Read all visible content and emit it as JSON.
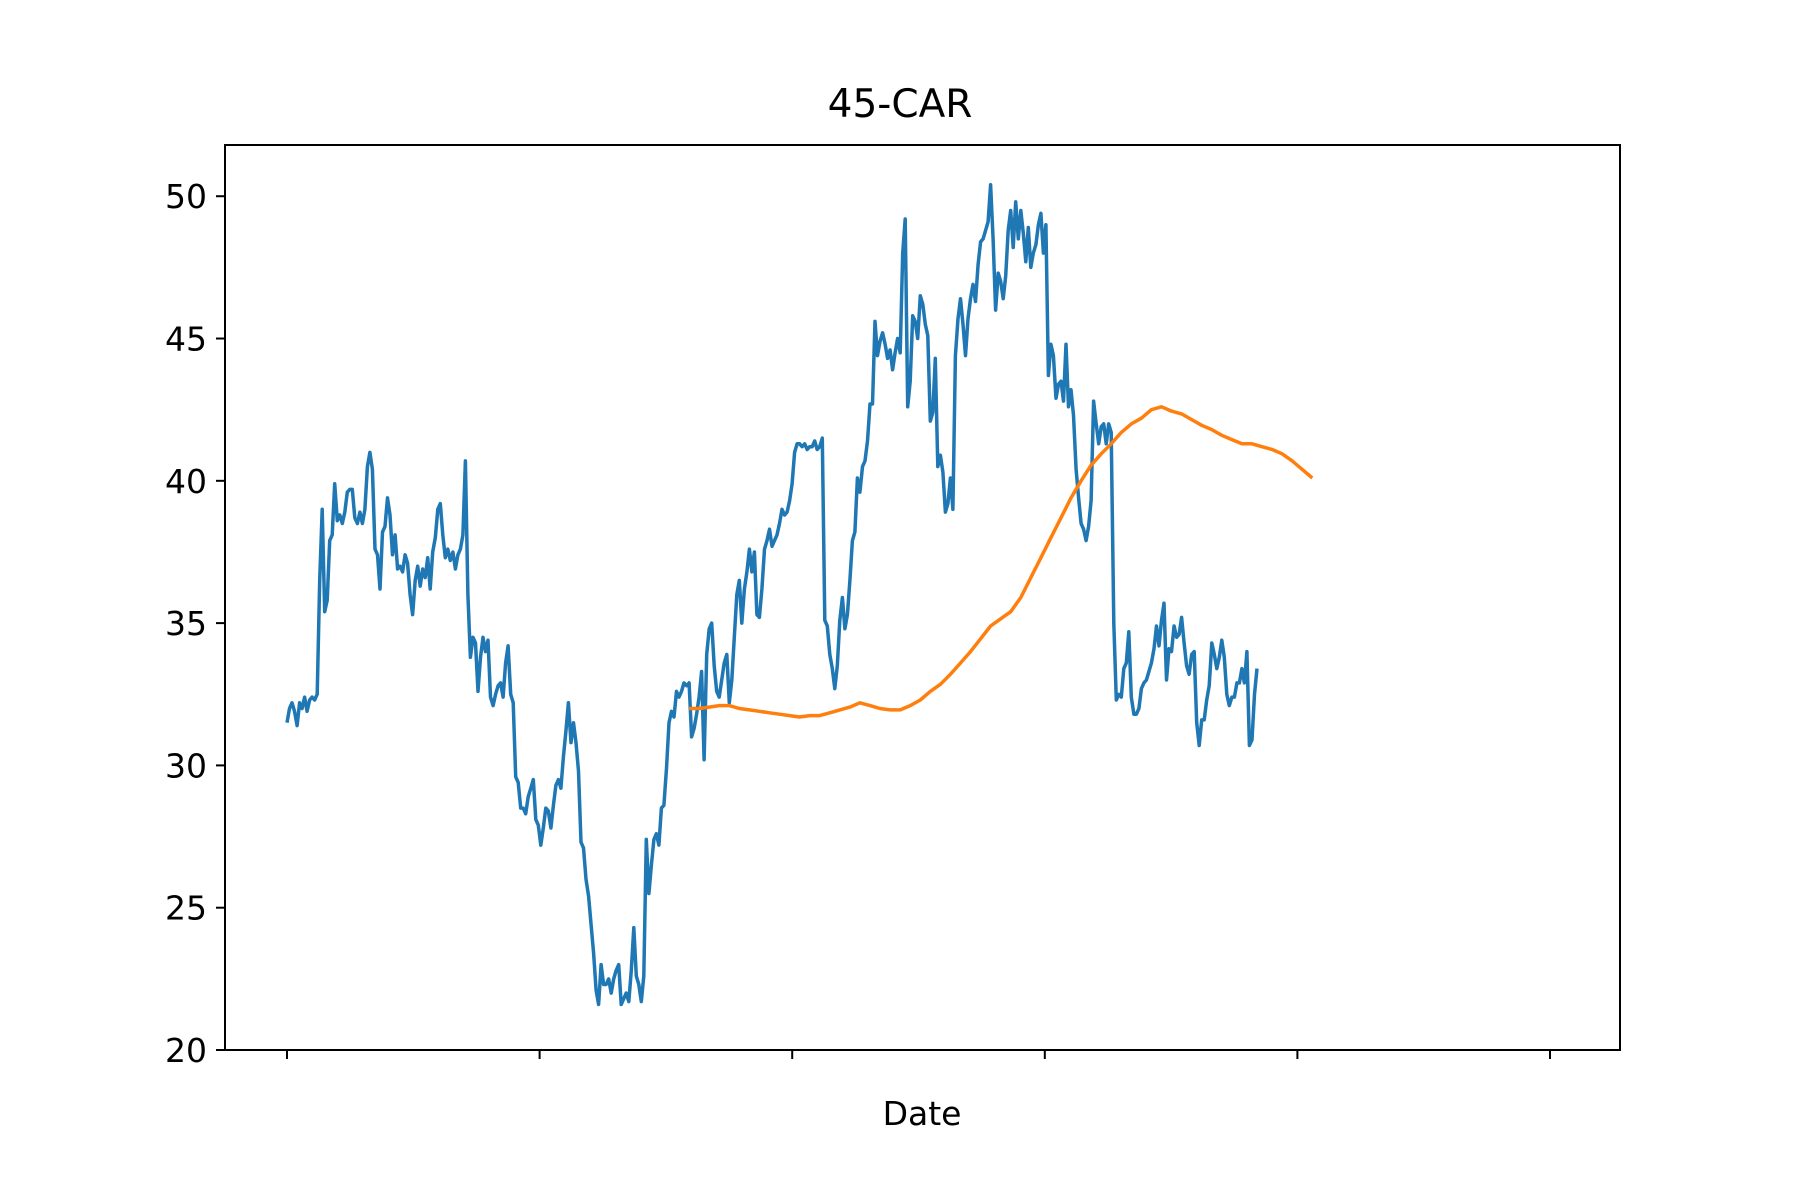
{
  "chart_data": {
    "type": "line",
    "title": "45-CAR",
    "xlabel": "Date",
    "ylabel": "",
    "ylim": [
      20,
      51.8
    ],
    "yticks": [
      20,
      25,
      30,
      35,
      40,
      45,
      50
    ],
    "xticks_count": 6,
    "x_labels_visible": false,
    "grid": false,
    "legend": "none",
    "series": [
      {
        "color": "#1f77b4",
        "x_start": 0,
        "x_step": 1,
        "values": [
          31.5,
          32.0,
          32.2,
          31.9,
          31.4,
          32.2,
          32.0,
          32.4,
          31.9,
          32.3,
          32.4,
          32.3,
          32.5,
          36.5,
          39.0,
          35.4,
          35.8,
          37.9,
          38.1,
          39.9,
          38.6,
          38.8,
          38.5,
          38.9,
          39.6,
          39.7,
          39.7,
          38.7,
          38.5,
          38.9,
          38.5,
          39.0,
          40.5,
          41.0,
          40.4,
          37.6,
          37.4,
          36.2,
          38.2,
          38.4,
          39.4,
          38.8,
          37.4,
          38.1,
          36.9,
          37.0,
          36.8,
          37.4,
          37.1,
          36.0,
          35.3,
          36.5,
          37.0,
          36.3,
          36.9,
          36.6,
          37.3,
          36.2,
          37.5,
          38.0,
          39.0,
          39.2,
          38.1,
          37.3,
          37.6,
          37.2,
          37.5,
          36.9,
          37.4,
          37.6,
          38.1,
          40.7,
          36.0,
          33.8,
          34.5,
          34.3,
          32.6,
          33.8,
          34.5,
          34.0,
          34.4,
          32.4,
          32.1,
          32.5,
          32.8,
          32.9,
          32.4,
          33.6,
          34.2,
          32.5,
          32.2,
          29.6,
          29.4,
          28.5,
          28.5,
          28.3,
          28.9,
          29.2,
          29.5,
          28.1,
          27.9,
          27.2,
          27.8,
          28.5,
          28.4,
          27.8,
          28.6,
          29.3,
          29.5,
          29.2,
          30.3,
          31.2,
          32.2,
          30.8,
          31.5,
          30.8,
          29.8,
          27.3,
          27.1,
          26.0,
          25.4,
          24.4,
          23.4,
          22.1,
          21.6,
          23.0,
          22.3,
          22.3,
          22.5,
          22.0,
          22.5,
          22.8,
          23.0,
          21.6,
          21.8,
          22.0,
          21.7,
          22.8,
          24.3,
          22.6,
          22.3,
          21.7,
          22.6,
          27.4,
          25.5,
          26.5,
          27.4,
          27.6,
          27.2,
          28.5,
          28.6,
          29.9,
          31.5,
          31.9,
          31.7,
          32.6,
          32.4,
          32.6,
          32.9,
          32.8,
          32.9,
          31.0,
          31.3,
          31.8,
          32.4,
          33.3,
          30.2,
          33.9,
          34.8,
          35.0,
          33.5,
          32.6,
          32.4,
          33.0,
          33.6,
          33.9,
          32.2,
          33.0,
          34.5,
          36.0,
          36.5,
          35.0,
          36.2,
          36.8,
          37.6,
          36.8,
          37.5,
          35.3,
          35.2,
          36.2,
          37.6,
          37.9,
          38.3,
          37.7,
          37.9,
          38.1,
          38.5,
          39.0,
          38.8,
          38.9,
          39.3,
          39.9,
          41.0,
          41.3,
          41.3,
          41.2,
          41.3,
          41.1,
          41.2,
          41.2,
          41.4,
          41.1,
          41.2,
          41.5,
          35.1,
          34.9,
          33.9,
          33.4,
          32.7,
          33.5,
          35.1,
          35.9,
          34.8,
          35.3,
          36.5,
          37.9,
          38.2,
          40.1,
          39.6,
          40.5,
          40.7,
          41.4,
          42.7,
          42.7,
          45.6,
          44.4,
          44.9,
          45.2,
          44.8,
          44.3,
          44.6,
          43.9,
          44.5,
          45.0,
          44.5,
          48.0,
          49.2,
          42.6,
          43.5,
          45.8,
          45.6,
          45.0,
          46.5,
          46.2,
          45.5,
          45.1,
          42.1,
          42.4,
          44.3,
          40.5,
          40.9,
          40.3,
          38.9,
          39.2,
          40.1,
          39.0,
          44.4,
          45.7,
          46.4,
          45.5,
          44.4,
          45.7,
          46.4,
          46.9,
          46.3,
          47.6,
          48.4,
          48.5,
          48.8,
          49.1,
          50.4,
          48.5,
          46.0,
          47.3,
          47.0,
          46.4,
          47.2,
          48.8,
          49.5,
          48.2,
          49.8,
          48.5,
          49.5,
          48.7,
          47.7,
          48.9,
          47.5,
          48.0,
          48.3,
          49.0,
          49.4,
          48.0,
          49.0,
          43.7,
          44.8,
          44.4,
          42.9,
          43.4,
          43.5,
          42.8,
          44.8,
          42.6,
          43.2,
          42.3,
          40.4,
          39.4,
          38.5,
          38.3,
          37.9,
          38.4,
          39.3,
          42.8,
          42.0,
          41.3,
          41.9,
          42.0,
          41.3,
          42.0,
          41.7,
          35.0,
          32.3,
          32.5,
          32.4,
          33.4,
          33.6,
          34.7,
          32.4,
          31.8,
          31.8,
          32.0,
          32.7,
          32.9,
          33.0,
          33.3,
          33.6,
          34.1,
          34.9,
          34.2,
          35.1,
          35.7,
          33.0,
          34.1,
          34.0,
          34.9,
          34.5,
          34.6,
          35.2,
          34.3,
          33.5,
          33.2,
          33.9,
          34.0,
          31.5,
          30.7,
          31.6,
          31.6,
          32.3,
          32.8,
          34.3,
          33.9,
          33.4,
          33.8,
          34.4,
          33.8,
          32.5,
          32.1,
          32.4,
          32.4,
          32.9,
          32.9,
          33.4,
          32.9,
          34.0,
          30.7,
          30.9,
          32.5,
          33.4
        ]
      },
      {
        "color": "#ff7f0e",
        "x_start": 160,
        "x_step": 4,
        "values": [
          32.0,
          32.0,
          32.05,
          32.1,
          32.1,
          32.0,
          31.95,
          31.9,
          31.85,
          31.8,
          31.75,
          31.7,
          31.75,
          31.75,
          31.85,
          31.95,
          32.05,
          32.2,
          32.1,
          32.0,
          31.95,
          31.95,
          32.1,
          32.3,
          32.6,
          32.85,
          33.2,
          33.6,
          34.0,
          34.45,
          34.9,
          35.15,
          35.4,
          35.9,
          36.6,
          37.3,
          38.0,
          38.7,
          39.4,
          40.0,
          40.55,
          40.95,
          41.3,
          41.7,
          42.0,
          42.2,
          42.5,
          42.6,
          42.45,
          42.35,
          42.15,
          41.95,
          41.8,
          41.6,
          41.45,
          41.3,
          41.3,
          41.2,
          41.1,
          40.95,
          40.7,
          40.4,
          40.1
        ]
      }
    ]
  }
}
